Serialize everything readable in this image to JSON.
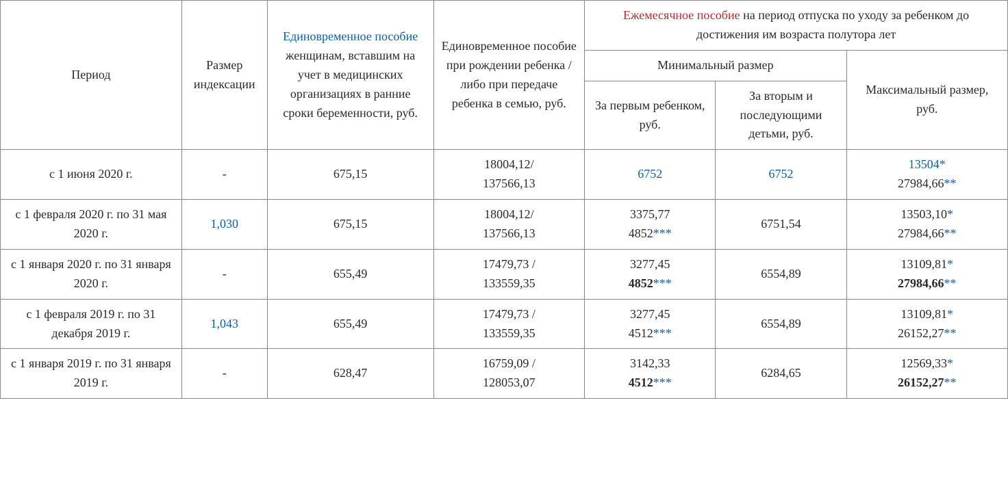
{
  "colors": {
    "text": "#2a2a2a",
    "link_blue": "#0b5fad",
    "accent_red": "#c1272d",
    "border": "#888888",
    "background": "#ffffff"
  },
  "font": {
    "family": "Times New Roman",
    "size_pt": 14
  },
  "header": {
    "period": "Период",
    "index_size": "Размер индексации",
    "one_time_med_link": "Единовременное пособие",
    "one_time_med_rest": " женщинам, вставшим на учет в медицинских организациях в ранние сроки беременности, руб.",
    "one_time_birth": "Единовременное пособие при рождении ребенка / либо при передаче ребенка в семью, руб.",
    "monthly_link": "Ежемесячное пособие",
    "monthly_rest": " на период отпуска по уходу за ребенком до достижения им возраста полутора лет",
    "min_size": "Минимальный размер",
    "max_size": "Максимальный размер, руб.",
    "first_child": "За первым ребенком, руб.",
    "second_child": "За вторым и последующими детьми, руб."
  },
  "rows": [
    {
      "period": "с 1 июня 2020 г.",
      "index": "-",
      "med": "675,15",
      "birth_l1": "18004,12/",
      "birth_l2": "137566,13",
      "first_value": "6752",
      "first_blue": true,
      "second_value": "6752",
      "second_blue": true,
      "max_l1": "13504",
      "max_l1_star": "*",
      "max_l1_blue": true,
      "max_l2": "27984,66",
      "max_l2_star": "**"
    },
    {
      "period": "с 1 февраля 2020 г. по 31 мая 2020 г.",
      "index": "1,030",
      "index_blue": true,
      "med": "675,15",
      "birth_l1": "18004,12/",
      "birth_l2": "137566,13",
      "first_l1": "3375,77",
      "first_l2": "4852",
      "first_l2_star": "***",
      "second_value": "6751,54",
      "max_l1": "13503,10",
      "max_l1_star": "*",
      "max_l2": "27984,66",
      "max_l2_star": "**"
    },
    {
      "period": "с 1 января 2020 г. по 31 января 2020 г.",
      "index": "-",
      "med": "655,49",
      "birth_l1": "17479,73 /",
      "birth_l2": "133559,35",
      "first_l1": "3277,45",
      "first_l2": "4852",
      "first_l2_bold": true,
      "first_l2_star": "***",
      "second_value": "6554,89",
      "max_l1": "13109,81",
      "max_l1_star": "*",
      "max_l2": "27984,66",
      "max_l2_bold": true,
      "max_l2_star": "**"
    },
    {
      "period": "с 1 февраля 2019 г. по 31 декабря 2019 г.",
      "index": "1,043",
      "index_blue": true,
      "med": "655,49",
      "birth_l1": "17479,73 /",
      "birth_l2": "133559,35",
      "first_l1": "3277,45",
      "first_l2": "4512",
      "first_l2_star": "***",
      "second_value": "6554,89",
      "max_l1": "13109,81",
      "max_l1_star": "*",
      "max_l2": "26152,27",
      "max_l2_star": "**"
    },
    {
      "period": "с 1 января 2019 г. по 31 января 2019 г.",
      "index": "-",
      "med": "628,47",
      "birth_l1": "16759,09 /",
      "birth_l2": "128053,07",
      "first_l1": "3142,33",
      "first_l2": "4512",
      "first_l2_bold": true,
      "first_l2_star": "***",
      "second_value": "6284,65",
      "max_l1": "12569,33",
      "max_l1_star": "*",
      "max_l2": "26152,27",
      "max_l2_bold": true,
      "max_l2_star": "**"
    }
  ]
}
